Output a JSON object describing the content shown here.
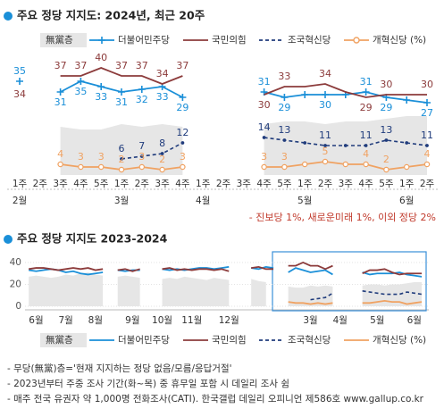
{
  "chart_data": [
    {
      "type": "line",
      "title": "주요 정당 지지도: 2024년, 최근 20주",
      "categories": [
        "1주",
        "2주",
        "3주",
        "4주",
        "5주",
        "1주",
        "2주",
        "3주",
        "4주",
        "1주",
        "2주",
        "3주",
        "4주",
        "5주",
        "1주",
        "2주",
        "3주",
        "4주",
        "5주",
        "1주",
        "2주"
      ],
      "months": [
        "2월",
        null,
        null,
        null,
        null,
        "3월",
        null,
        null,
        null,
        "4월",
        null,
        null,
        null,
        null,
        "5월",
        null,
        null,
        null,
        null,
        "6월",
        null
      ],
      "ylim": [
        0,
        42
      ],
      "note": "- 진보당 1%, 새로운미래 1%, 이외 정당 2%",
      "series": [
        {
          "name": "無黨층",
          "color": "#e6e6e6",
          "style": "area",
          "values": [
            null,
            null,
            18,
            17,
            17,
            19,
            18,
            19,
            18,
            null,
            null,
            null,
            19,
            20,
            20,
            19,
            20,
            20,
            21,
            22,
            22
          ]
        },
        {
          "name": "더불어민주당",
          "color": "#1a8fd8",
          "style": "line",
          "marker": "plus",
          "values": [
            35,
            null,
            31,
            35,
            33,
            31,
            32,
            33,
            29,
            null,
            null,
            null,
            31,
            29,
            30,
            30,
            30,
            31,
            29,
            28,
            27
          ],
          "value_labels": [
            "35",
            null,
            "31",
            "35",
            "33",
            "31",
            "32",
            "33",
            "29",
            null,
            null,
            null,
            "31",
            "29",
            null,
            "30",
            null,
            "31",
            "29",
            null,
            "27"
          ]
        },
        {
          "name": "국민의힘",
          "color": "#8c3b3b",
          "style": "line",
          "values": [
            34,
            null,
            37,
            37,
            40,
            37,
            37,
            34,
            37,
            null,
            null,
            null,
            30,
            33,
            33,
            34,
            31,
            29,
            30,
            30,
            30
          ],
          "value_labels": [
            "34",
            null,
            "37",
            "37",
            "40",
            "37",
            "37",
            "34",
            "37",
            null,
            null,
            null,
            "30",
            "33",
            null,
            "34",
            null,
            "29",
            "30",
            null,
            "30"
          ]
        },
        {
          "name": "조국혁신당",
          "color": "#203c7c",
          "style": "dashed",
          "marker": "dot",
          "values": [
            null,
            null,
            null,
            null,
            null,
            6,
            7,
            8,
            12,
            null,
            null,
            null,
            14,
            13,
            12,
            11,
            11,
            11,
            13,
            12,
            11
          ],
          "value_labels": [
            null,
            null,
            null,
            null,
            null,
            "6",
            "7",
            "8",
            "12",
            null,
            null,
            null,
            "14",
            "13",
            null,
            "11",
            null,
            "11",
            "13",
            null,
            "11"
          ]
        },
        {
          "name": "개혁신당 (%)",
          "color": "#f0a262",
          "style": "line",
          "marker": "circle",
          "values": [
            null,
            null,
            4,
            3,
            3,
            2,
            3,
            2,
            3,
            null,
            null,
            null,
            3,
            3,
            4,
            5,
            4,
            4,
            2,
            3,
            4
          ],
          "value_labels": [
            null,
            null,
            "4",
            "3",
            "3",
            "2",
            "3",
            "2",
            "3",
            null,
            null,
            null,
            "3",
            "3",
            null,
            "5",
            null,
            "4",
            "2",
            null,
            "4"
          ]
        }
      ]
    },
    {
      "type": "line",
      "title": "주요 정당 지지도 2023-2024",
      "categories": [
        null,
        "6월",
        null,
        null,
        null,
        "7월",
        null,
        null,
        null,
        "8월",
        null,
        null,
        null,
        null,
        "9월",
        null,
        null,
        null,
        "10월",
        null,
        null,
        null,
        "11월",
        null,
        null,
        null,
        null,
        "12월",
        null,
        null,
        null,
        null,
        null,
        null,
        null,
        null,
        null,
        null,
        "3월",
        null,
        null,
        null,
        "4월",
        null,
        null,
        null,
        null,
        "5월",
        null,
        null,
        null,
        null,
        "6월",
        null
      ],
      "ylim": [
        0,
        46
      ],
      "yticks": [
        0,
        20,
        40
      ],
      "grid": true,
      "series": [
        {
          "name": "無黨층",
          "color": "#e6e6e6",
          "style": "area",
          "values": [
            27,
            28,
            27,
            26,
            27,
            29,
            28,
            30,
            31,
            29,
            28,
            null,
            27,
            28,
            27,
            26,
            null,
            null,
            25,
            26,
            25,
            27,
            26,
            25,
            24,
            26,
            25,
            24,
            null,
            null,
            25,
            23,
            22,
            null,
            null,
            18,
            17,
            17,
            19,
            18,
            19,
            18,
            null,
            null,
            null,
            19,
            20,
            20,
            19,
            20,
            20,
            21,
            22,
            22
          ]
        },
        {
          "name": "더불어민주당",
          "color": "#1a8fd8",
          "style": "line",
          "values": [
            33,
            32,
            33,
            34,
            33,
            31,
            32,
            30,
            29,
            30,
            31,
            null,
            33,
            32,
            33,
            33,
            null,
            null,
            34,
            33,
            34,
            33,
            34,
            35,
            35,
            34,
            35,
            36,
            null,
            null,
            35,
            34,
            36,
            35,
            null,
            31,
            35,
            33,
            31,
            32,
            33,
            29,
            null,
            null,
            null,
            31,
            29,
            30,
            30,
            30,
            31,
            29,
            28,
            27
          ]
        },
        {
          "name": "국민의힘",
          "color": "#8c3b3b",
          "style": "line",
          "values": [
            34,
            35,
            35,
            34,
            33,
            34,
            35,
            34,
            35,
            33,
            34,
            null,
            33,
            34,
            32,
            34,
            null,
            null,
            34,
            35,
            33,
            34,
            33,
            34,
            34,
            33,
            34,
            32,
            null,
            null,
            35,
            36,
            34,
            34,
            null,
            37,
            37,
            40,
            37,
            37,
            34,
            37,
            null,
            null,
            null,
            30,
            33,
            33,
            34,
            31,
            29,
            30,
            30,
            30
          ]
        },
        {
          "name": "조국혁신당",
          "color": "#203c7c",
          "style": "dashed",
          "values": [
            null,
            null,
            null,
            null,
            null,
            null,
            null,
            null,
            null,
            null,
            null,
            null,
            null,
            null,
            null,
            null,
            null,
            null,
            null,
            null,
            null,
            null,
            null,
            null,
            null,
            null,
            null,
            null,
            null,
            null,
            null,
            null,
            null,
            null,
            null,
            null,
            null,
            null,
            6,
            7,
            8,
            12,
            null,
            null,
            null,
            14,
            13,
            12,
            11,
            11,
            11,
            13,
            12,
            11
          ]
        },
        {
          "name": "개혁신당 (%)",
          "color": "#f0a262",
          "style": "line",
          "values": [
            null,
            null,
            null,
            null,
            null,
            null,
            null,
            null,
            null,
            null,
            null,
            null,
            null,
            null,
            null,
            null,
            null,
            null,
            null,
            null,
            null,
            null,
            null,
            null,
            null,
            null,
            null,
            null,
            null,
            null,
            null,
            null,
            null,
            null,
            null,
            4,
            3,
            3,
            2,
            3,
            2,
            3,
            null,
            null,
            null,
            3,
            3,
            4,
            5,
            4,
            4,
            2,
            3,
            4
          ]
        }
      ]
    }
  ],
  "footnotes": [
    "- 무당(無黨)층='현재 지지하는 정당 없음/모름/응답거절'",
    "- 2023년부터 주중 조사 기간(화~목) 중 휴무일 포함 시 데일리 조사 쉼",
    "- 매주 전국 유권자 약 1,000명 전화조사(CATI). 한국갤럽 데일리 오피니언 제586호 www.gallup.co.kr"
  ]
}
